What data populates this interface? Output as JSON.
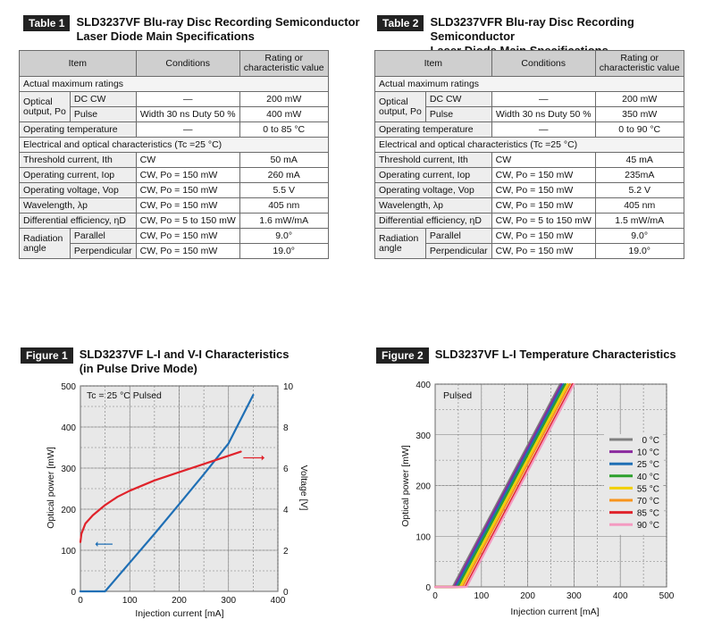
{
  "table1": {
    "tag": "Table 1",
    "title_line1": "SLD3237VF Blu-ray Disc Recording Semiconductor",
    "title_line2": "Laser Diode Main Specifications",
    "headers": {
      "item": "Item",
      "conditions": "Conditions",
      "rating_line1": "Rating or",
      "rating_line2": "characteristic value"
    },
    "section_max": "Actual maximum ratings",
    "optical_output_line1": "Optical",
    "optical_output_line2": "output, Po",
    "dc_cw": {
      "label": "DC CW",
      "condition": "—",
      "value": "200 mW"
    },
    "pulse": {
      "label": "Pulse",
      "condition": "Width 30 ns Duty 50 %",
      "value": "400 mW"
    },
    "op_temp": {
      "label": "Operating temperature",
      "condition": "—",
      "value": "0 to 85 °C"
    },
    "section_elec": "Electrical and optical characteristics (Tc =25 °C)",
    "rows": [
      {
        "label": "Threshold current, Ith",
        "condition": "CW",
        "value": "50 mA"
      },
      {
        "label": "Operating current, Iop",
        "condition": "CW, Po = 150 mW",
        "value": "260 mA"
      },
      {
        "label": "Operating voltage, Vop",
        "condition": "CW, Po = 150 mW",
        "value": "5.5 V"
      },
      {
        "label": "Wavelength, λp",
        "condition": "CW, Po = 150 mW",
        "value": "405 nm"
      },
      {
        "label": "Differential efficiency, ηD",
        "condition": "CW, Po = 5 to 150 mW",
        "value": "1.6 mW/mA"
      }
    ],
    "radiation_line1": "Radiation",
    "radiation_line2": "angle",
    "parallel": {
      "label": "Parallel",
      "condition": "CW, Po = 150 mW",
      "value": "9.0°"
    },
    "perpendicular": {
      "label": "Perpendicular",
      "condition": "CW, Po = 150 mW",
      "value": "19.0°"
    }
  },
  "table2": {
    "tag": "Table 2",
    "title_line1": "SLD3237VFR Blu-ray Disc Recording Semiconductor",
    "title_line2": "Laser Diode Main Specifications",
    "headers": {
      "item": "Item",
      "conditions": "Conditions",
      "rating_line1": "Rating or",
      "rating_line2": "characteristic value"
    },
    "section_max": "Actual maximum ratings",
    "optical_output_line1": "Optical",
    "optical_output_line2": "output, Po",
    "dc_cw": {
      "label": "DC CW",
      "condition": "—",
      "value": "200 mW"
    },
    "pulse": {
      "label": "Pulse",
      "condition": "Width 30 ns Duty 50 %",
      "value": "350 mW"
    },
    "op_temp": {
      "label": "Operating temperature",
      "condition": "—",
      "value": "0 to 90 °C"
    },
    "section_elec": "Electrical and optical characteristics (Tc =25 °C)",
    "rows": [
      {
        "label": "Threshold current, Ith",
        "condition": "CW",
        "value": "45 mA"
      },
      {
        "label": "Operating current, Iop",
        "condition": "CW, Po = 150 mW",
        "value": "235mA"
      },
      {
        "label": "Operating voltage, Vop",
        "condition": "CW, Po = 150 mW",
        "value": "5.2 V"
      },
      {
        "label": "Wavelength, λp",
        "condition": "CW, Po = 150 mW",
        "value": "405 nm"
      },
      {
        "label": "Differential efficiency, ηD",
        "condition": "CW, Po = 5 to 150 mW",
        "value": "1.5 mW/mA"
      }
    ],
    "radiation_line1": "Radiation",
    "radiation_line2": "angle",
    "parallel": {
      "label": "Parallel",
      "condition": "CW, Po = 150 mW",
      "value": "9.0°"
    },
    "perpendicular": {
      "label": "Perpendicular",
      "condition": "CW, Po = 150 mW",
      "value": "19.0°"
    }
  },
  "figure1": {
    "tag": "Figure 1",
    "title_line1": "SLD3237VF L-I and V-I Characteristics",
    "title_line2": "(in Pulse Drive Mode)",
    "annotation": "Tc = 25 °C   Pulsed"
  },
  "figure2": {
    "tag": "Figure 2",
    "title_line1": "SLD3237VF L-I Temperature Characteristics",
    "annotation": "Pulsed"
  },
  "colors": {
    "li_line": "#1f6fb5",
    "vi_line": "#e0232b",
    "grid": "#7a7a7a",
    "plot_bg": "#e8e8e8",
    "tag_bg": "#222222"
  },
  "chart_data": [
    {
      "type": "line",
      "title": "SLD3237VF L-I and V-I Characteristics (in Pulse Drive Mode)",
      "xlabel": "Injection current [mA]",
      "ylabel": "Optical power [mW]",
      "y2label": "Voltage [V]",
      "xlim": [
        0,
        400
      ],
      "ylim": [
        0,
        500
      ],
      "y2lim": [
        0,
        10
      ],
      "xticks": [
        0,
        100,
        200,
        300,
        400
      ],
      "yticks": [
        0,
        100,
        200,
        300,
        400,
        500
      ],
      "y2ticks": [
        0,
        2,
        4,
        6,
        8,
        10
      ],
      "grid": true,
      "series": [
        {
          "axis": "left",
          "color": "#1f6fb5",
          "x": [
            0,
            50,
            100,
            150,
            200,
            250,
            300,
            350
          ],
          "y": [
            0,
            0,
            70,
            140,
            212,
            285,
            360,
            478
          ]
        },
        {
          "axis": "right",
          "color": "#e0232b",
          "x": [
            0,
            2,
            10,
            25,
            50,
            75,
            100,
            150,
            200,
            250,
            300,
            325
          ],
          "y": [
            2.4,
            2.8,
            3.3,
            3.7,
            4.2,
            4.6,
            4.9,
            5.4,
            5.8,
            6.2,
            6.6,
            6.8
          ]
        }
      ]
    },
    {
      "type": "line",
      "title": "SLD3237VF L-I Temperature Characteristics",
      "xlabel": "Injection current [mA]",
      "ylabel": "Optical power [mW]",
      "xlim": [
        0,
        500
      ],
      "ylim": [
        0,
        400
      ],
      "xticks": [
        0,
        100,
        200,
        300,
        400,
        500
      ],
      "yticks": [
        0,
        100,
        200,
        300,
        400
      ],
      "grid": true,
      "legend_position": "right",
      "series": [
        {
          "name": "0 °C",
          "color": "#7f7f7f",
          "x": [
            0,
            38,
            270
          ],
          "y": [
            0,
            0,
            400
          ]
        },
        {
          "name": "10 °C",
          "color": "#8a2a9e",
          "x": [
            0,
            41,
            273
          ],
          "y": [
            0,
            0,
            400
          ]
        },
        {
          "name": "25 °C",
          "color": "#1f6fb5",
          "x": [
            0,
            45,
            277
          ],
          "y": [
            0,
            0,
            400
          ]
        },
        {
          "name": "40 °C",
          "color": "#2ca02c",
          "x": [
            0,
            49,
            281
          ],
          "y": [
            0,
            0,
            400
          ]
        },
        {
          "name": "55 °C",
          "color": "#f2d000",
          "x": [
            0,
            54,
            286
          ],
          "y": [
            0,
            0,
            400
          ]
        },
        {
          "name": "70 °C",
          "color": "#f7941d",
          "x": [
            0,
            59,
            291
          ],
          "y": [
            0,
            0,
            400
          ]
        },
        {
          "name": "85 °C",
          "color": "#e0232b",
          "x": [
            0,
            65,
            297
          ],
          "y": [
            0,
            0,
            400
          ]
        },
        {
          "name": "90 °C",
          "color": "#f49ac1",
          "x": [
            0,
            68,
            300
          ],
          "y": [
            0,
            0,
            400
          ]
        }
      ]
    }
  ]
}
